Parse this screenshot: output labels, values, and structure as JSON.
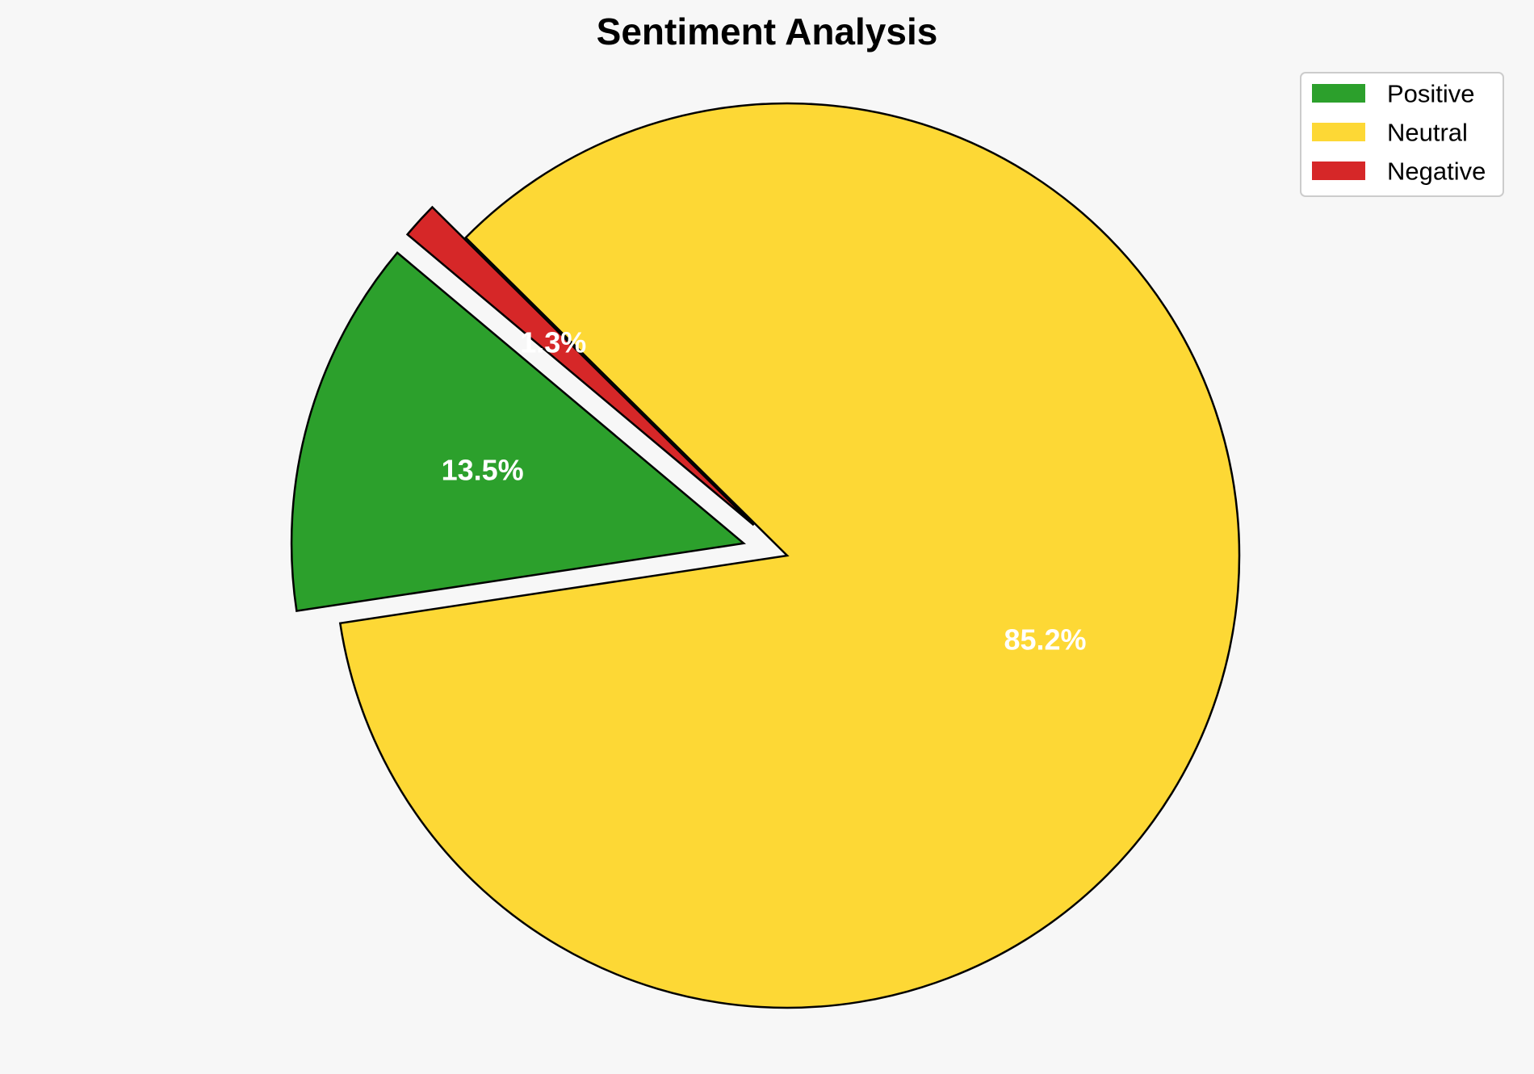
{
  "chart_data": {
    "type": "pie",
    "title": "Sentiment Analysis",
    "labels": [
      "Positive",
      "Neutral",
      "Negative"
    ],
    "values": [
      13.5,
      85.2,
      1.3
    ],
    "value_labels": [
      "13.5%",
      "85.2%",
      "1.3%"
    ],
    "colors": [
      "#2ca02c",
      "#fdd835",
      "#d62728"
    ],
    "exploded": [
      true,
      false,
      true
    ],
    "start_angle_deg": 140,
    "legend": {
      "position": "top-right",
      "entries": [
        "Positive",
        "Neutral",
        "Negative"
      ]
    },
    "background_color": "#f7f7f7",
    "edge_color": "#000000"
  }
}
